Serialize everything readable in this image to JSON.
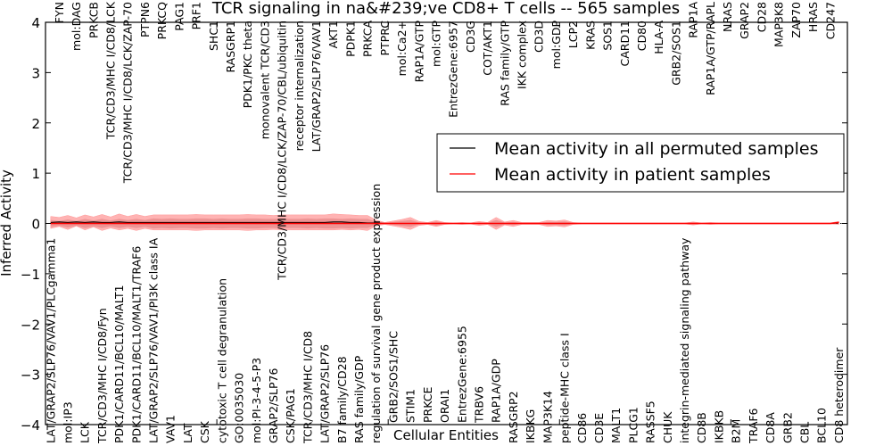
{
  "chart_data": {
    "type": "line",
    "title": "TCR signaling in na&#239;ve CD8+ T cells -- 565 samples",
    "xlabel": "Cellular Entities",
    "ylabel": "Inferred Activity",
    "ylim": [
      -4,
      4
    ],
    "yticks": [
      "-4",
      "-3",
      "-2",
      "-1",
      "0",
      "1",
      "2",
      "3",
      "4"
    ],
    "xlim": [
      0,
      93.6
    ],
    "grid": false,
    "legend": {
      "placement": "top-left",
      "entries": [
        {
          "label": "Mean activity in all permuted samples",
          "color": "#000000"
        },
        {
          "label": "Mean activity in patient samples",
          "color": "#ff0000"
        }
      ]
    },
    "categories": [
      "LAT/GRAP2/SLP76/VAV1/PLCgamma1",
      "FYN",
      "mol:IP3",
      "mol:DAG",
      "LCK",
      "PRKCB",
      "TCR/CD3/MHC I/CD8/Fyn",
      "TCR/CD3/MHC I/CD8/LCK",
      "PDK1/CARD11/BCL10/MALT1",
      "TCR/CD3/MHC I/CD8/LCK/ZAP-70",
      "PDK1/CARD11/BCL10/MALT1/TRAF6",
      "PTPN6",
      "LAT/GRAP2/SLP76/VAV1/PI3K class IA",
      "PRKCQ",
      "VAV1",
      "PAG1",
      "LAT",
      "PRF1",
      "CSK",
      "SHC1",
      "cytotoxic T cell degranulation",
      "RASGRP1",
      "GO:0035030",
      "PDK1/PKC theta",
      "mol:PI-3-4-5-P3",
      "monovalent TCR/CD3",
      "GRAP2/SLP76",
      "TCR/CD3/MHC I/CD8/LCK/ZAP-70/CBL/ubiquitin",
      "CSK/PAG1",
      "receptor internalization",
      "TCR/CD3/MHC I/CD8",
      "LAT/GRAP2/SLP76/VAV1",
      "LAT/GRAP2/SLP76",
      "AKT1",
      "B7 family/CD28",
      "PDPK1",
      "RAS family/GDP",
      "PRKCA",
      "regulation of survival gene product expression",
      "PTPRC",
      "GRB2/SOS1/SHC",
      "mol:Ca2+",
      "STIM1",
      "RAP1A/GTP",
      "PRKCE",
      "mol:GTP",
      "ORAI1",
      "EntrezGene:6957",
      "EntrezGene:6955",
      "CD3G",
      "TRBV6",
      "COT/AKT1",
      "RAP1A/GDP",
      "RAS family/GTP",
      "RASGRP2",
      "IKK complex",
      "IKBKG",
      "CD3D",
      "MAP3K14",
      "mol:GDP",
      "peptide-MHC class I",
      "LCP2",
      "CD86",
      "KRAS",
      "CD3E",
      "SOS1",
      "MALT1",
      "CARD11",
      "PLCG1",
      "CD80",
      "RASSF5",
      "HLA-A",
      "CHUK",
      "GRB2/SOS1",
      "integrin-mediated signaling pathway",
      "RAP1A",
      "CD8B",
      "RAP1A/GTP/RAPL",
      "IKBKB",
      "NRAS",
      "B2M",
      "GRAP2",
      "TRAF6",
      "CD28",
      "CD8A",
      "MAP3K8",
      "GRB2",
      "ZAP70",
      "CBL",
      "HRAS",
      "BCL10",
      "CD247",
      "CD8 heterodimer"
    ],
    "series": [
      {
        "name": "Mean activity in all permuted samples",
        "color": "#000000",
        "values": [
          0.02,
          0.03,
          0.02,
          0.03,
          0.02,
          0.03,
          0.02,
          0.02,
          0.03,
          0.02,
          0.02,
          0.02,
          0.02,
          0.02,
          0.02,
          0.02,
          0.02,
          0.02,
          0.02,
          0.02,
          0.02,
          0.02,
          0.02,
          0.02,
          0.02,
          0.02,
          0.02,
          0.02,
          0.02,
          0.02,
          0.02,
          0.02,
          0.02,
          0.03,
          0.03,
          0.02,
          0.02,
          0.01,
          0.01,
          0.0,
          0.0,
          0.0,
          0.0,
          0.0,
          0.0,
          0.0,
          0.0,
          0.0,
          0.0,
          0.0,
          0.0,
          0.0,
          0.0,
          0.0,
          0.0,
          0.0,
          0.0,
          0.0,
          0.0,
          0.0,
          0.0,
          0.0,
          0.0,
          0.0,
          0.0,
          0.0,
          0.0,
          0.0,
          0.0,
          0.0,
          0.0,
          0.0,
          0.0,
          0.0,
          0.0,
          0.0,
          0.0,
          0.0,
          0.0,
          0.0,
          0.0,
          0.0,
          0.0,
          0.0,
          0.0,
          0.0,
          0.0,
          0.0,
          0.0,
          0.0,
          0.0,
          0.0,
          0.01
        ],
        "band_halfwidth": [
          0.12,
          0.09,
          0.14,
          0.08,
          0.15,
          0.1,
          0.16,
          0.11,
          0.16,
          0.12,
          0.16,
          0.12,
          0.15,
          0.15,
          0.15,
          0.15,
          0.15,
          0.16,
          0.15,
          0.15,
          0.15,
          0.15,
          0.15,
          0.16,
          0.15,
          0.15,
          0.14,
          0.15,
          0.15,
          0.15,
          0.15,
          0.15,
          0.15,
          0.16,
          0.15,
          0.15,
          0.14,
          0.15,
          0.06,
          0.02,
          0.05,
          0.08,
          0.12,
          0.04,
          0.02,
          0.06,
          0.02,
          0.01,
          0.02,
          0.01,
          0.04,
          0.02,
          0.12,
          0.03,
          0.06,
          0.02,
          0.02,
          0.02,
          0.06,
          0.05,
          0.07,
          0.02,
          0.01,
          0.01,
          0.01,
          0.01,
          0.01,
          0.01,
          0.01,
          0.01,
          0.01,
          0.01,
          0.01,
          0.01,
          0.01,
          0.03,
          0.01,
          0.02,
          0.01,
          0.01,
          0.01,
          0.01,
          0.01,
          0.01,
          0.01,
          0.01,
          0.01,
          0.01,
          0.01,
          0.01,
          0.01,
          0.01,
          0.03
        ]
      },
      {
        "name": "Mean activity in patient samples",
        "color": "#ff0000",
        "values": [
          0,
          0,
          0,
          0,
          0,
          0,
          0,
          0,
          0,
          0,
          0,
          0,
          0,
          0,
          0,
          0,
          0,
          0,
          0,
          0,
          0,
          0,
          0,
          0,
          0,
          0,
          0,
          0,
          0,
          0,
          0,
          0,
          0,
          0,
          0,
          0,
          0,
          0,
          0,
          0,
          0,
          0,
          0,
          0,
          0,
          0,
          0,
          0,
          0,
          0,
          0,
          0,
          0,
          0,
          0,
          0,
          0,
          0,
          0,
          0,
          0,
          0,
          0,
          0,
          0,
          0,
          0,
          0,
          0,
          0,
          0,
          0,
          0,
          0,
          0,
          0,
          0,
          0,
          0,
          0,
          0,
          0,
          0,
          0,
          0,
          0,
          0,
          0,
          0,
          0,
          0,
          0,
          0.02
        ],
        "band_halfwidth": [
          0.07,
          0.05,
          0.08,
          0.05,
          0.09,
          0.06,
          0.09,
          0.06,
          0.09,
          0.07,
          0.09,
          0.07,
          0.1,
          0.09,
          0.1,
          0.09,
          0.09,
          0.1,
          0.1,
          0.09,
          0.1,
          0.09,
          0.09,
          0.1,
          0.1,
          0.09,
          0.09,
          0.1,
          0.09,
          0.09,
          0.1,
          0.09,
          0.1,
          0.1,
          0.09,
          0.1,
          0.09,
          0.09,
          0.03,
          0.01,
          0.03,
          0.05,
          0.07,
          0.02,
          0.01,
          0.04,
          0.01,
          0.005,
          0.01,
          0.005,
          0.02,
          0.01,
          0.07,
          0.02,
          0.03,
          0.01,
          0.01,
          0.01,
          0.03,
          0.03,
          0.04,
          0.01,
          0.005,
          0.005,
          0.005,
          0.005,
          0.005,
          0.005,
          0.005,
          0.005,
          0.005,
          0.005,
          0.005,
          0.005,
          0.005,
          0.02,
          0.005,
          0.01,
          0.005,
          0.005,
          0.005,
          0.005,
          0.005,
          0.005,
          0.005,
          0.005,
          0.005,
          0.005,
          0.005,
          0.005,
          0.005,
          0.005,
          0.02
        ]
      }
    ],
    "band_colors": {
      "outer": "#ff9999",
      "inner": "#e07a7a"
    }
  }
}
